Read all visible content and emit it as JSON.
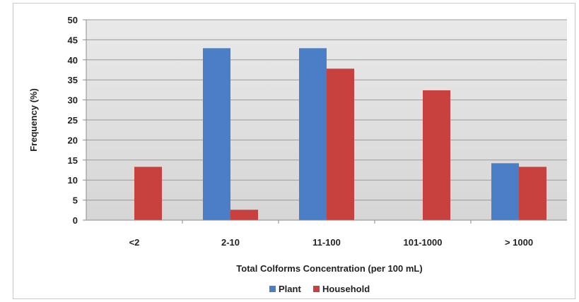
{
  "chart_data": {
    "type": "bar",
    "title": "",
    "xlabel": "Total Colforms Concentration (per 100 mL)",
    "ylabel": "Frequency (%)",
    "ylim": [
      0,
      50
    ],
    "yticks": [
      "0",
      "5",
      "10",
      "15",
      "20",
      "25",
      "30",
      "35",
      "40",
      "45",
      "50"
    ],
    "grid": true,
    "legend_position": "bottom",
    "categories": [
      "<2",
      "2-10",
      "11-100",
      "101-1000",
      "> 1000"
    ],
    "series": [
      {
        "name": "Plant",
        "color": "#4a7ec6",
        "values": [
          0,
          42.9,
          42.9,
          0,
          14.2
        ]
      },
      {
        "name": "Household",
        "color": "#c9413e",
        "values": [
          13.3,
          2.6,
          37.8,
          32.4,
          13.3
        ]
      }
    ]
  }
}
